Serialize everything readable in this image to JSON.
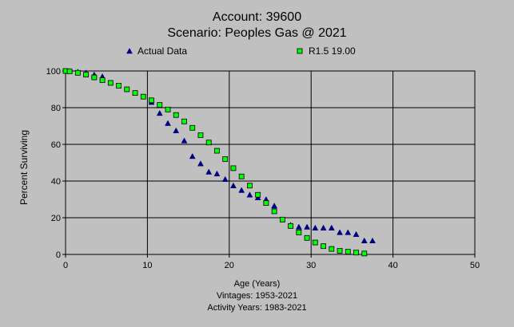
{
  "chart_data": {
    "type": "scatter",
    "title": "Account: 39600",
    "subtitle": "Scenario: Peoples Gas @ 2021",
    "xlabel": "Age (Years)",
    "ylabel": "Percent Surviving",
    "xlim": [
      0,
      50
    ],
    "ylim": [
      0,
      100
    ],
    "x_ticks": [
      0,
      10,
      20,
      30,
      40,
      50
    ],
    "y_ticks": [
      0,
      20,
      40,
      60,
      80,
      100
    ],
    "grid": true,
    "legend_position": "top",
    "footer": [
      "Vintages: 1953-2021",
      "Activity Years: 1983-2021"
    ],
    "series": [
      {
        "name": "Actual Data",
        "marker": "triangle",
        "color": "#000080",
        "points": [
          [
            0.5,
            100
          ],
          [
            1.5,
            99.5
          ],
          [
            2.5,
            99
          ],
          [
            3.5,
            98
          ],
          [
            4.5,
            97
          ],
          [
            10.5,
            83
          ],
          [
            11.5,
            77
          ],
          [
            12.5,
            71.5
          ],
          [
            13.5,
            67.5
          ],
          [
            14.5,
            62
          ],
          [
            15.5,
            53.5
          ],
          [
            16.5,
            49.5
          ],
          [
            17.5,
            45
          ],
          [
            18.5,
            44
          ],
          [
            19.5,
            41
          ],
          [
            20.5,
            37.5
          ],
          [
            21.5,
            35
          ],
          [
            22.5,
            32.5
          ],
          [
            23.5,
            31
          ],
          [
            24.5,
            30
          ],
          [
            25.5,
            26.5
          ],
          [
            27.5,
            16
          ],
          [
            28.5,
            15
          ],
          [
            29.5,
            15
          ],
          [
            30.5,
            14.5
          ],
          [
            31.5,
            14.5
          ],
          [
            32.5,
            14.5
          ],
          [
            33.5,
            12
          ],
          [
            34.5,
            12
          ],
          [
            35.5,
            11
          ],
          [
            36.5,
            7.5
          ],
          [
            37.5,
            7.5
          ]
        ]
      },
      {
        "name": "R1.5 19.00",
        "marker": "square",
        "color": "#00ff00",
        "points": [
          [
            0,
            100
          ],
          [
            0.5,
            99.8
          ],
          [
            1.5,
            99
          ],
          [
            2.5,
            98
          ],
          [
            3.5,
            96.5
          ],
          [
            4.5,
            95
          ],
          [
            5.5,
            93.5
          ],
          [
            6.5,
            92
          ],
          [
            7.5,
            90
          ],
          [
            8.5,
            88
          ],
          [
            9.5,
            86
          ],
          [
            10.5,
            84
          ],
          [
            11.5,
            81.5
          ],
          [
            12.5,
            79
          ],
          [
            13.5,
            76
          ],
          [
            14.5,
            72.5
          ],
          [
            15.5,
            69
          ],
          [
            16.5,
            65
          ],
          [
            17.5,
            61
          ],
          [
            18.5,
            56.5
          ],
          [
            19.5,
            52
          ],
          [
            20.5,
            47
          ],
          [
            21.5,
            42.5
          ],
          [
            22.5,
            37.5
          ],
          [
            23.5,
            32.5
          ],
          [
            24.5,
            28
          ],
          [
            25.5,
            23.5
          ],
          [
            26.5,
            19
          ],
          [
            27.5,
            15.5
          ],
          [
            28.5,
            12
          ],
          [
            29.5,
            9
          ],
          [
            30.5,
            6.5
          ],
          [
            31.5,
            4.5
          ],
          [
            32.5,
            3
          ],
          [
            33.5,
            2
          ],
          [
            34.5,
            1.5
          ],
          [
            35.5,
            1
          ],
          [
            36.5,
            0.5
          ]
        ]
      }
    ]
  }
}
